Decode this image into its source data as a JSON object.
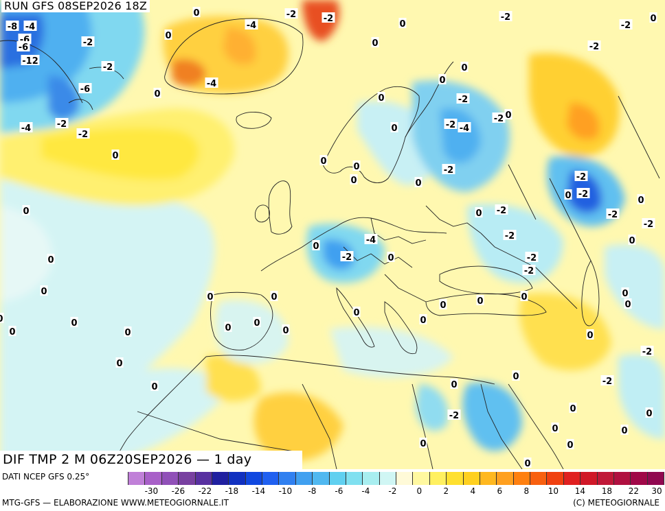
{
  "header": {
    "run": "RUN GFS 08SEP2026 18Z"
  },
  "map_title": "DIF TMP 2 M 06Z20SEP2026 — 1 day",
  "source": "DATI NCEP GFS 0.25°",
  "footer": {
    "left": "MTG-GFS — ELABORAZIONE WWW.METEOGIORNALE.IT",
    "right": "(C) METEOGIORNALE"
  },
  "legend": {
    "colors": [
      "#c080d8",
      "#a860c8",
      "#9050b8",
      "#7840a0",
      "#5830a0",
      "#2020a0",
      "#1030c0",
      "#1048e0",
      "#2060f0",
      "#3080f0",
      "#40a0f0",
      "#50b8f0",
      "#60d0f0",
      "#80e0f0",
      "#a8eef0",
      "#d0f6f4",
      "#fffad8",
      "#fff8a0",
      "#fff060",
      "#ffe030",
      "#ffd020",
      "#ffb820",
      "#ffa020",
      "#ff8010",
      "#f86010",
      "#f04010",
      "#e02020",
      "#d01828",
      "#c01838",
      "#b01040",
      "#a00848",
      "#900850"
    ],
    "ticks": [
      "-30",
      "-26",
      "-22",
      "-18",
      "-14",
      "-10",
      "-8",
      "-6",
      "-4",
      "-2",
      "0",
      "2",
      "4",
      "6",
      "8",
      "10",
      "14",
      "18",
      "22",
      "30"
    ]
  },
  "contour_labels": [
    {
      "text": "0"
    },
    {
      "text": "-2"
    },
    {
      "text": "-2"
    },
    {
      "text": "-8"
    },
    {
      "text": "-4"
    },
    {
      "text": "-6"
    },
    {
      "text": "-6"
    },
    {
      "text": "-12"
    },
    {
      "text": "-2"
    },
    {
      "text": "-2"
    },
    {
      "text": "-6"
    },
    {
      "text": "-4"
    },
    {
      "text": "-4"
    },
    {
      "text": "-2"
    },
    {
      "text": "0"
    },
    {
      "text": "-4"
    },
    {
      "text": "0"
    },
    {
      "text": "0"
    },
    {
      "text": "-2"
    },
    {
      "text": "0"
    },
    {
      "text": "0"
    },
    {
      "text": "0"
    },
    {
      "text": "-2"
    },
    {
      "text": "0"
    },
    {
      "text": "-2"
    },
    {
      "text": "-2"
    },
    {
      "text": "-2"
    },
    {
      "text": "-2"
    },
    {
      "text": "-2"
    },
    {
      "text": "-4"
    },
    {
      "text": "-2"
    },
    {
      "text": "0"
    },
    {
      "text": "-2"
    },
    {
      "text": "0"
    },
    {
      "text": "0"
    },
    {
      "text": "0"
    },
    {
      "text": "0"
    },
    {
      "text": "0"
    },
    {
      "text": "-2"
    },
    {
      "text": "-4"
    },
    {
      "text": "-2"
    },
    {
      "text": "0"
    },
    {
      "text": "0"
    },
    {
      "text": "0"
    },
    {
      "text": "0"
    },
    {
      "text": "-2"
    },
    {
      "text": "0"
    },
    {
      "text": "-2"
    },
    {
      "text": "-2"
    },
    {
      "text": "0"
    },
    {
      "text": "-2"
    },
    {
      "text": "0"
    },
    {
      "text": "-2"
    },
    {
      "text": "-2"
    },
    {
      "text": "0"
    },
    {
      "text": "0"
    },
    {
      "text": "0"
    },
    {
      "text": "0"
    },
    {
      "text": "0"
    },
    {
      "text": "0"
    },
    {
      "text": "0"
    },
    {
      "text": "0"
    },
    {
      "text": "0"
    },
    {
      "text": "0"
    },
    {
      "text": "0"
    },
    {
      "text": "0"
    },
    {
      "text": "0"
    },
    {
      "text": "0"
    },
    {
      "text": "0"
    },
    {
      "text": "0"
    },
    {
      "text": "0"
    },
    {
      "text": "0"
    },
    {
      "text": "0"
    },
    {
      "text": "0"
    },
    {
      "text": "0"
    },
    {
      "text": "0"
    },
    {
      "text": "-2"
    },
    {
      "text": "-2"
    },
    {
      "text": "0"
    },
    {
      "text": "-2"
    },
    {
      "text": "0"
    },
    {
      "text": "0"
    },
    {
      "text": "0"
    },
    {
      "text": "0"
    },
    {
      "text": "0"
    },
    {
      "text": "0"
    },
    {
      "text": "0"
    },
    {
      "text": "0"
    },
    {
      "text": "0"
    }
  ]
}
